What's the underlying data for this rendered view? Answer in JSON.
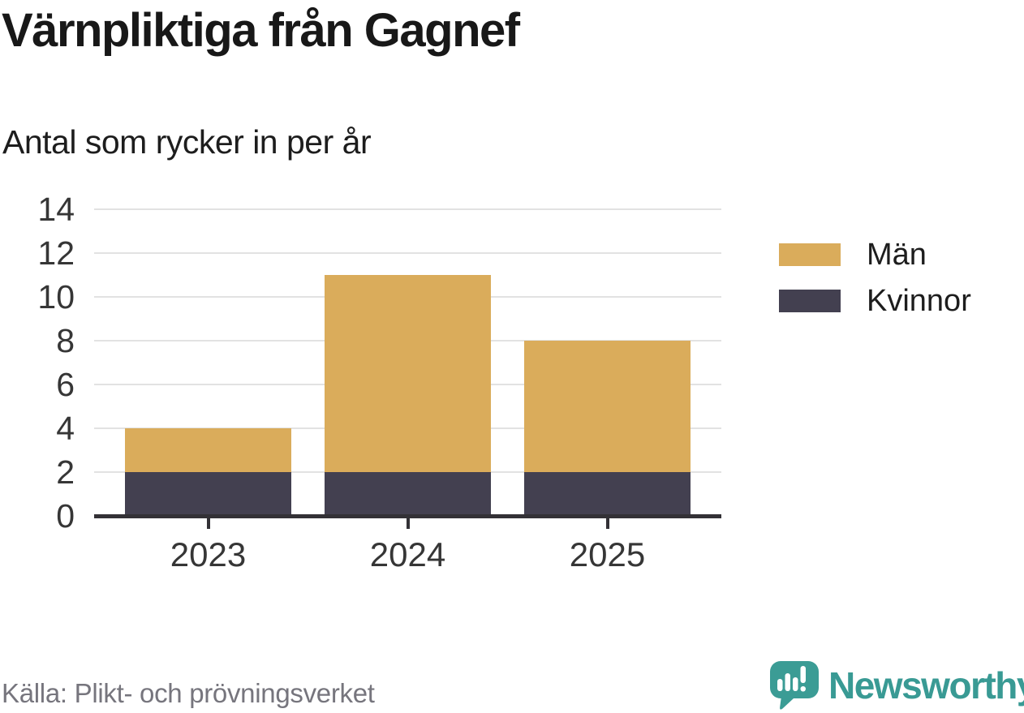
{
  "page": {
    "background": "#ffffff"
  },
  "header": {
    "title": "Värnpliktiga från Gagnef",
    "subtitle": "Antal som rycker in per år"
  },
  "chart_data": {
    "type": "bar",
    "stacked": true,
    "title": "Värnpliktiga från Gagnef",
    "subtitle": "Antal som rycker in per år",
    "categories": [
      "2023",
      "2024",
      "2025"
    ],
    "series": [
      {
        "name": "Män",
        "color": "#DAAC5B",
        "values": [
          2,
          9,
          6
        ]
      },
      {
        "name": "Kvinnor",
        "color": "#434050",
        "values": [
          2,
          2,
          2
        ]
      }
    ],
    "stack_order_bottom_to_top": [
      "Kvinnor",
      "Män"
    ],
    "stack_totals": [
      4,
      11,
      8
    ],
    "ylim": [
      0,
      14
    ],
    "yticks": [
      0,
      2,
      4,
      6,
      8,
      10,
      12,
      14
    ],
    "grid": true,
    "legend_position": "right",
    "colors": {
      "grid": "#e2e2e2",
      "axis": "#333136",
      "tick_label": "#363636"
    }
  },
  "legend": {
    "items": [
      {
        "label": "Män",
        "color": "#DAAC5B"
      },
      {
        "label": "Kvinnor",
        "color": "#434050"
      }
    ]
  },
  "footer": {
    "source": "Källa: Plikt- och prövningsverket",
    "brand": "Newsworthy",
    "brand_color": "#399a94",
    "logo_color": "#3b9c95"
  }
}
